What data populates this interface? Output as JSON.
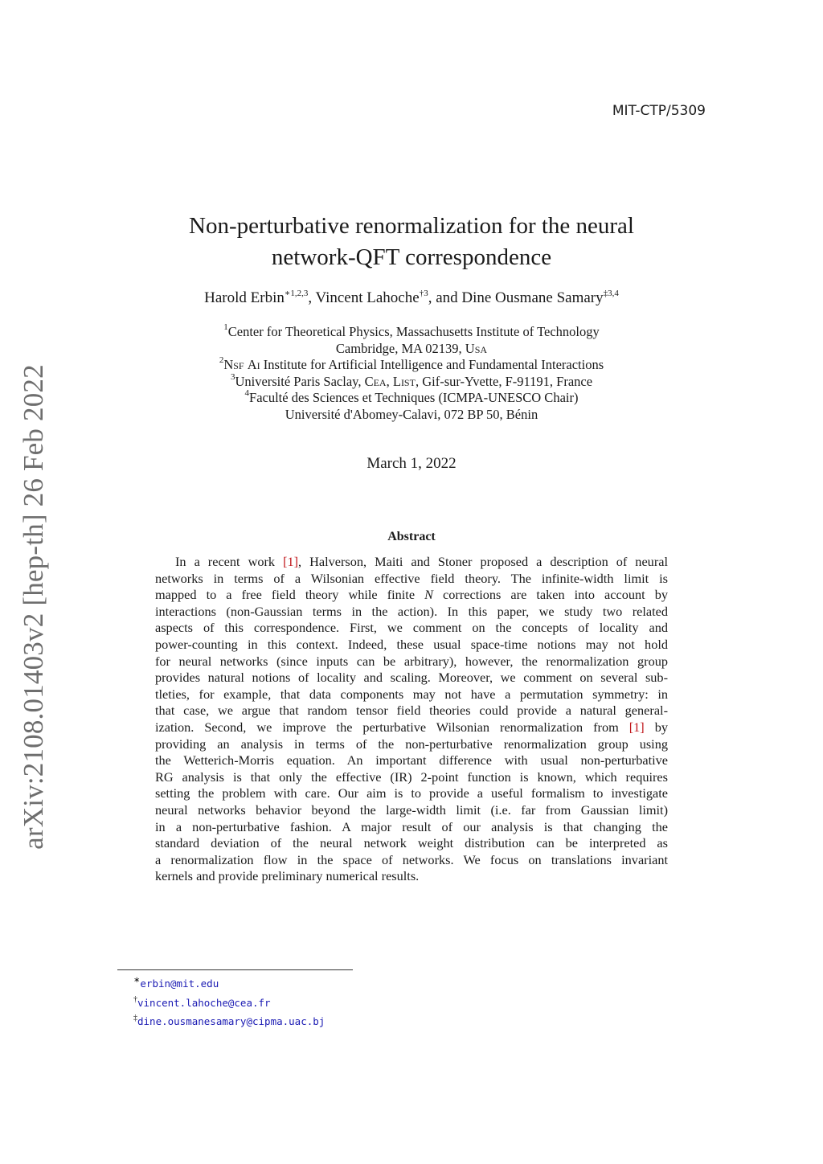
{
  "report_number": "MIT-CTP/5309",
  "arxiv_stamp": "arXiv:2108.01403v2  [hep-th]  26 Feb 2022",
  "title": [
    "Non-perturbative renormalization for the neural",
    "network-QFT correspondence"
  ],
  "authors": [
    {
      "name": "Harold Erbin",
      "marks": "∗1,2,3",
      "sep": ", "
    },
    {
      "name": "Vincent Lahoche",
      "marks": "†3",
      "sep": ", and "
    },
    {
      "name": "Dine Ousmane Samary",
      "marks": "‡3,4",
      "sep": ""
    }
  ],
  "affiliations": [
    {
      "num": "1",
      "text": "Center for Theoretical Physics, Massachusetts Institute of Technology"
    },
    {
      "num": "",
      "text": "Cambridge, MA 02139, Usa"
    },
    {
      "num": "2",
      "text": "Nsf Ai Institute for Artificial Intelligence and Fundamental Interactions"
    },
    {
      "num": "3",
      "text": "Université Paris Saclay, Cea, List, Gif-sur-Yvette, F-91191, France"
    },
    {
      "num": "4",
      "text": "Faculté des Sciences et Techniques (ICMPA-UNESCO Chair)"
    },
    {
      "num": "",
      "text": "Université d'Abomey-Calavi, 072 BP 50, Bénin"
    }
  ],
  "date": "March 1, 2022",
  "abstract_heading": "Abstract",
  "abstract_lines": [
    {
      "pre": "In a recent work ",
      "cite": "[1]",
      "post": ", Halverson, Maiti and Stoner proposed a description of neural"
    },
    {
      "pre": "networks in terms of a Wilsonian effective field theory.  The infinite-width limit is"
    },
    {
      "pre": "mapped to a free field theory while finite ",
      "ital": "N",
      "post": " corrections are taken into account by"
    },
    {
      "pre": "interactions (non-Gaussian terms in the action). In this paper, we study two related"
    },
    {
      "pre": "aspects of this correspondence.  First, we comment on the concepts of locality and"
    },
    {
      "pre": "power-counting in this context. Indeed, these usual space-time notions may not hold"
    },
    {
      "pre": "for neural networks (since inputs can be arbitrary), however, the renormalization group"
    },
    {
      "pre": "provides natural notions of locality and scaling. Moreover, we comment on several sub-"
    },
    {
      "pre": "tleties, for example, that data components may not have a permutation symmetry: in"
    },
    {
      "pre": "that case, we argue that random tensor field theories could provide a natural general-"
    },
    {
      "pre": "ization.  Second, we improve the perturbative Wilsonian renormalization from ",
      "cite": "[1]",
      "post": " by"
    },
    {
      "pre": "providing an analysis in terms of the non-perturbative renormalization group using"
    },
    {
      "pre": "the Wetterich-Morris equation. An important difference with usual non-perturbative"
    },
    {
      "pre": "RG analysis is that only the effective (IR) 2-point function is known, which requires"
    },
    {
      "pre": "setting the problem with care. Our aim is to provide a useful formalism to investigate"
    },
    {
      "pre": "neural networks behavior beyond the large-width limit (i.e. far from Gaussian limit)"
    },
    {
      "pre": "in a non-perturbative fashion.  A major result of our analysis is that changing the"
    },
    {
      "pre": "standard deviation of the neural network weight distribution can be interpreted as"
    },
    {
      "pre": "a renormalization flow in the space of networks. We focus on translations invariant"
    },
    {
      "pre": "kernels and provide preliminary numerical results."
    }
  ],
  "footnotes": [
    {
      "mark": "∗",
      "email": "erbin@mit.edu"
    },
    {
      "mark": "†",
      "email": "vincent.lahoche@cea.fr"
    },
    {
      "mark": "‡",
      "email": "dine.ousmanesamary@cipma.uac.bj"
    }
  ],
  "colors": {
    "citation": "#c0161b",
    "email": "#1a1ab3",
    "stamp": "#6e6e6e"
  }
}
